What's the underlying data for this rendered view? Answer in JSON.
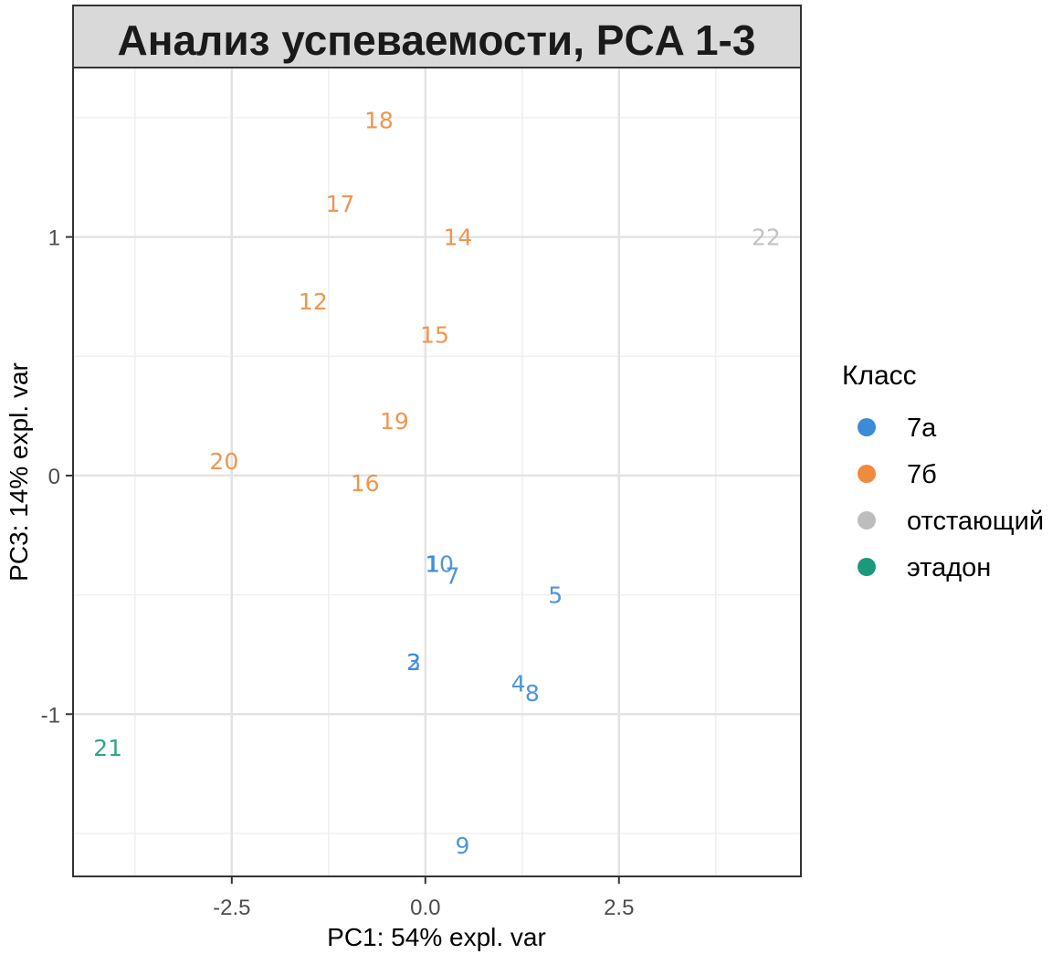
{
  "chart_data": {
    "type": "scatter",
    "title": "Анализ успеваемости, PCA 1-3",
    "xlabel": "PC1: 54% expl. var",
    "ylabel": "PC3: 14% expl. var",
    "xlim": [
      -4.55,
      4.85
    ],
    "ylim": [
      -1.68,
      1.71
    ],
    "x_ticks": [
      -2.5,
      0,
      2.5
    ],
    "x_tick_labels": [
      "-2.5",
      "0.0",
      "2.5"
    ],
    "y_ticks": [
      -1,
      0,
      1
    ],
    "y_tick_labels": [
      "-1",
      "0",
      "1"
    ],
    "grid": true,
    "legend": {
      "title": "Класс",
      "position": "right",
      "entries": [
        {
          "label": "7а",
          "color": "#3b8bd6"
        },
        {
          "label": "7б",
          "color": "#f08a3c"
        },
        {
          "label": "отстающий",
          "color": "#bdbdbd"
        },
        {
          "label": "этадон",
          "color": "#1a9a78"
        }
      ]
    },
    "points": [
      {
        "label": "1",
        "x": 0.1,
        "y": -0.37,
        "group": 0
      },
      {
        "label": "10",
        "x": 0.18,
        "y": -0.37,
        "group": 0
      },
      {
        "label": "7",
        "x": 0.35,
        "y": -0.42,
        "group": 0
      },
      {
        "label": "5",
        "x": 1.68,
        "y": -0.5,
        "group": 0
      },
      {
        "label": "3",
        "x": -0.15,
        "y": -0.78,
        "group": 0
      },
      {
        "label": "2",
        "x": -0.15,
        "y": -0.78,
        "group": 0
      },
      {
        "label": "4",
        "x": 1.2,
        "y": -0.87,
        "group": 0
      },
      {
        "label": "8",
        "x": 1.38,
        "y": -0.91,
        "group": 0
      },
      {
        "label": "9",
        "x": 0.48,
        "y": -1.55,
        "group": 0
      },
      {
        "label": "18",
        "x": -0.6,
        "y": 1.49,
        "group": 1
      },
      {
        "label": "17",
        "x": -1.1,
        "y": 1.14,
        "group": 1
      },
      {
        "label": "14",
        "x": 0.42,
        "y": 1.0,
        "group": 1
      },
      {
        "label": "12",
        "x": -1.45,
        "y": 0.73,
        "group": 1
      },
      {
        "label": "15",
        "x": 0.12,
        "y": 0.59,
        "group": 1
      },
      {
        "label": "19",
        "x": -0.4,
        "y": 0.23,
        "group": 1
      },
      {
        "label": "20",
        "x": -2.6,
        "y": 0.06,
        "group": 1
      },
      {
        "label": "16",
        "x": -0.78,
        "y": -0.03,
        "group": 1
      },
      {
        "label": "22",
        "x": 4.4,
        "y": 1.0,
        "group": 2
      },
      {
        "label": "21",
        "x": -4.1,
        "y": -1.14,
        "group": 3
      }
    ]
  }
}
